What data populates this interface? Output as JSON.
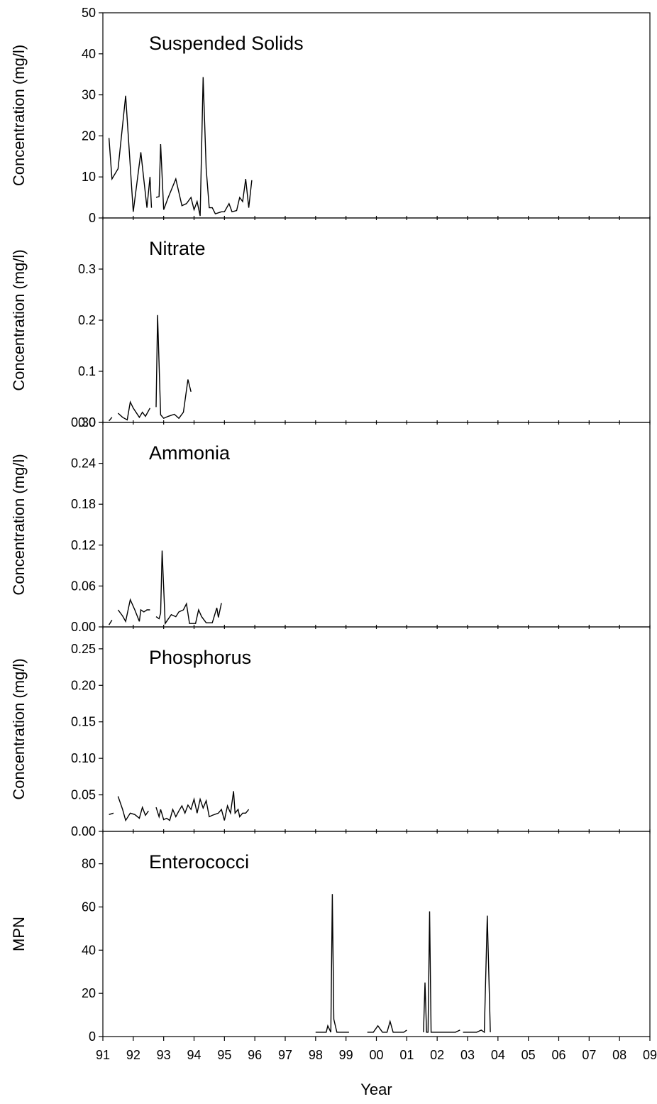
{
  "chart_data": [
    {
      "type": "line",
      "title": "Suspended Solids",
      "ylabel": "Concentration (mg/l)",
      "xlim": [
        91,
        109
      ],
      "ylim": [
        0,
        50
      ],
      "yticks": [
        "0",
        "10",
        "20",
        "30",
        "40",
        "50"
      ],
      "series": [
        {
          "segments": [
            [
              [
                91.2,
                19.5
              ],
              [
                91.3,
                9.5
              ],
              [
                91.5,
                12
              ],
              [
                91.75,
                29.8
              ],
              [
                92.0,
                1.5
              ],
              [
                92.25,
                16
              ],
              [
                92.45,
                2.5
              ],
              [
                92.55,
                10
              ],
              [
                92.6,
                2.5
              ]
            ],
            [
              [
                92.75,
                5
              ],
              [
                92.85,
                5.2
              ],
              [
                92.9,
                18
              ],
              [
                93.0,
                2
              ],
              [
                93.15,
                5
              ],
              [
                93.4,
                9.5
              ],
              [
                93.6,
                3
              ],
              [
                93.75,
                3.5
              ],
              [
                93.9,
                5
              ],
              [
                94.0,
                2
              ],
              [
                94.1,
                4
              ],
              [
                94.2,
                0.5
              ],
              [
                94.3,
                34.3
              ],
              [
                94.4,
                12
              ],
              [
                94.5,
                2.5
              ],
              [
                94.6,
                2.5
              ],
              [
                94.7,
                1
              ],
              [
                94.9,
                1.5
              ],
              [
                95.0,
                1.5
              ],
              [
                95.15,
                3.5
              ],
              [
                95.25,
                1.5
              ],
              [
                95.4,
                1.8
              ],
              [
                95.5,
                5
              ],
              [
                95.6,
                4
              ],
              [
                95.7,
                9.5
              ],
              [
                95.8,
                2.5
              ],
              [
                95.9,
                9.2
              ]
            ]
          ]
        }
      ]
    },
    {
      "type": "line",
      "title": "Nitrate",
      "ylabel": "Concentration (mg/l)",
      "xlim": [
        91,
        109
      ],
      "ylim": [
        0,
        0.4
      ],
      "yticks": [
        "0.0",
        "0.1",
        "0.2",
        "0.3"
      ],
      "series": [
        {
          "segments": [
            [
              [
                91.2,
                0.003
              ],
              [
                91.3,
                0.01
              ]
            ],
            [
              [
                91.5,
                0.018
              ],
              [
                91.65,
                0.01
              ],
              [
                91.8,
                0.005
              ],
              [
                91.9,
                0.04
              ],
              [
                92.0,
                0.028
              ],
              [
                92.2,
                0.01
              ],
              [
                92.3,
                0.02
              ],
              [
                92.4,
                0.012
              ],
              [
                92.55,
                0.028
              ]
            ],
            [
              [
                92.75,
                0.03
              ],
              [
                92.8,
                0.21
              ],
              [
                92.9,
                0.015
              ],
              [
                93.0,
                0.008
              ],
              [
                93.15,
                0.012
              ],
              [
                93.35,
                0.016
              ],
              [
                93.5,
                0.008
              ],
              [
                93.65,
                0.02
              ],
              [
                93.8,
                0.084
              ],
              [
                93.9,
                0.06
              ]
            ]
          ]
        }
      ]
    },
    {
      "type": "line",
      "title": "Ammonia",
      "ylabel": "Concentration (mg/l)",
      "xlim": [
        91,
        109
      ],
      "ylim": [
        0,
        0.3
      ],
      "yticks": [
        "0.00",
        "0.06",
        "0.12",
        "0.18",
        "0.24",
        "0.30"
      ],
      "series": [
        {
          "segments": [
            [
              [
                91.2,
                0.003
              ],
              [
                91.3,
                0.01
              ]
            ],
            [
              [
                91.5,
                0.025
              ],
              [
                91.65,
                0.016
              ],
              [
                91.75,
                0.008
              ],
              [
                91.9,
                0.04
              ],
              [
                92.05,
                0.025
              ],
              [
                92.2,
                0.008
              ],
              [
                92.25,
                0.025
              ],
              [
                92.35,
                0.022
              ],
              [
                92.45,
                0.025
              ],
              [
                92.55,
                0.025
              ]
            ],
            [
              [
                92.75,
                0.015
              ],
              [
                92.85,
                0.012
              ],
              [
                92.9,
                0.02
              ],
              [
                92.95,
                0.112
              ],
              [
                93.05,
                0.005
              ],
              [
                93.25,
                0.018
              ],
              [
                93.4,
                0.015
              ],
              [
                93.5,
                0.022
              ],
              [
                93.65,
                0.025
              ],
              [
                93.75,
                0.034
              ],
              [
                93.85,
                0.005
              ],
              [
                94.05,
                0.005
              ],
              [
                94.15,
                0.025
              ],
              [
                94.25,
                0.015
              ],
              [
                94.4,
                0.006
              ],
              [
                94.5,
                0.006
              ],
              [
                94.6,
                0.006
              ],
              [
                94.75,
                0.028
              ],
              [
                94.8,
                0.014
              ],
              [
                94.9,
                0.035
              ]
            ]
          ]
        }
      ]
    },
    {
      "type": "line",
      "title": "Phosphorus",
      "ylabel": "Concentration (mg/l)",
      "xlim": [
        91,
        109
      ],
      "ylim": [
        0,
        0.28
      ],
      "yticks": [
        "0.00",
        "0.05",
        "0.10",
        "0.15",
        "0.20",
        "0.25"
      ],
      "series": [
        {
          "segments": [
            [
              [
                91.2,
                0.023
              ],
              [
                91.35,
                0.025
              ]
            ],
            [
              [
                91.5,
                0.048
              ],
              [
                91.65,
                0.03
              ],
              [
                91.75,
                0.015
              ],
              [
                91.9,
                0.025
              ],
              [
                92.05,
                0.023
              ],
              [
                92.2,
                0.018
              ],
              [
                92.3,
                0.033
              ],
              [
                92.4,
                0.022
              ],
              [
                92.5,
                0.028
              ]
            ],
            [
              [
                92.75,
                0.033
              ],
              [
                92.85,
                0.02
              ],
              [
                92.9,
                0.03
              ],
              [
                93.0,
                0.016
              ],
              [
                93.1,
                0.018
              ],
              [
                93.2,
                0.015
              ],
              [
                93.3,
                0.03
              ],
              [
                93.4,
                0.02
              ],
              [
                93.5,
                0.028
              ],
              [
                93.6,
                0.035
              ],
              [
                93.7,
                0.025
              ],
              [
                93.8,
                0.036
              ],
              [
                93.9,
                0.03
              ],
              [
                94.0,
                0.044
              ],
              [
                94.1,
                0.025
              ],
              [
                94.2,
                0.044
              ],
              [
                94.3,
                0.032
              ],
              [
                94.4,
                0.042
              ],
              [
                94.5,
                0.02
              ],
              [
                94.6,
                0.022
              ],
              [
                94.8,
                0.025
              ],
              [
                94.9,
                0.03
              ],
              [
                95.0,
                0.015
              ],
              [
                95.1,
                0.035
              ],
              [
                95.2,
                0.025
              ],
              [
                95.3,
                0.055
              ],
              [
                95.35,
                0.025
              ],
              [
                95.45,
                0.03
              ],
              [
                95.5,
                0.02
              ],
              [
                95.6,
                0.025
              ],
              [
                95.7,
                0.025
              ],
              [
                95.8,
                0.03
              ]
            ]
          ]
        }
      ]
    },
    {
      "type": "line",
      "title": "Enterococci",
      "ylabel": "MPN",
      "xlabel": "Year",
      "xlim": [
        91,
        109
      ],
      "ylim": [
        0,
        95
      ],
      "yticks": [
        "0",
        "20",
        "40",
        "60",
        "80"
      ],
      "xticks": [
        "91",
        "92",
        "93",
        "94",
        "95",
        "96",
        "97",
        "98",
        "99",
        "00",
        "01",
        "02",
        "03",
        "04",
        "05",
        "06",
        "07",
        "08",
        "09"
      ],
      "series": [
        {
          "segments": [
            [
              [
                98.0,
                2
              ],
              [
                98.15,
                2
              ],
              [
                98.25,
                2
              ],
              [
                98.35,
                2
              ],
              [
                98.4,
                5
              ],
              [
                98.5,
                2
              ],
              [
                98.55,
                66
              ],
              [
                98.6,
                8
              ],
              [
                98.7,
                2
              ],
              [
                98.9,
                2
              ],
              [
                99.1,
                2
              ]
            ],
            [
              [
                99.5,
                7
              ]
            ],
            [
              [
                99.7,
                2
              ],
              [
                99.9,
                2
              ],
              [
                100.05,
                5
              ],
              [
                100.2,
                2
              ],
              [
                100.35,
                2
              ],
              [
                100.45,
                7
              ],
              [
                100.55,
                2
              ],
              [
                100.8,
                2
              ],
              [
                100.9,
                2
              ],
              [
                101.0,
                3
              ]
            ],
            [
              [
                101.55,
                2
              ],
              [
                101.6,
                25
              ],
              [
                101.65,
                2
              ],
              [
                101.7,
                2
              ],
              [
                101.75,
                58
              ],
              [
                101.8,
                2
              ],
              [
                102.5,
                2
              ],
              [
                102.6,
                2
              ],
              [
                102.75,
                3
              ]
            ],
            [
              [
                102.85,
                2
              ],
              [
                103.15,
                2
              ],
              [
                103.3,
                2
              ],
              [
                103.45,
                3
              ],
              [
                103.55,
                2
              ],
              [
                103.65,
                56
              ],
              [
                103.75,
                2
              ]
            ]
          ]
        }
      ]
    }
  ]
}
